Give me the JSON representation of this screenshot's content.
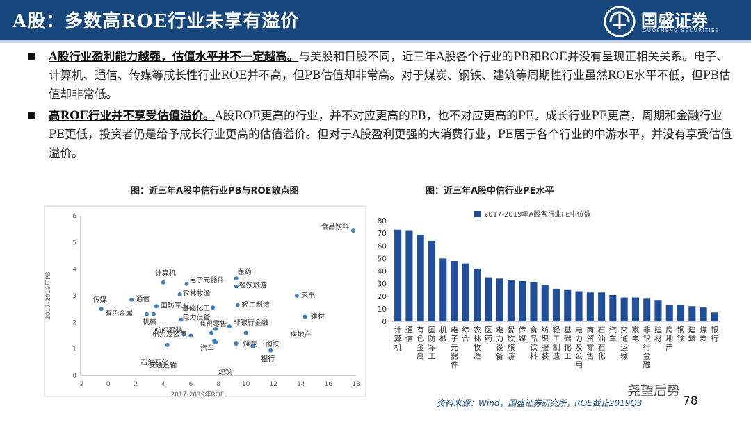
{
  "header": {
    "title": "A股：多数高ROE行业未享有溢价",
    "logo_name": "国盛证券",
    "logo_sub": "GUOSHENG SECURITIES"
  },
  "bullets": [
    {
      "highlight": "A股行业盈利能力越强，估值水平并不一定越高。",
      "text": "与美股和日股不同，近三年A股各个行业的PB和ROE并没有呈现正相关关系。电子、计算机、通信、传媒等成长性行业ROE并不高，但PB估值却非常高。对于煤炭、钢铁、建筑等周期性行业虽然ROE水平不低，但PB估值却非常低。"
    },
    {
      "highlight": "高ROE行业并不享受估值溢价。",
      "text": "A股ROE更高的行业，并不对应更高的PB，也不对应更高的PE。成长行业PE更高，周期和金融行业PE更低，投资者仍是给予成长行业更高的估值溢价。但对于A股盈利更强的大消费行业，PE居于各个行业的中游水平，并没有享受估值溢价。"
    }
  ],
  "left_caption": "图：近三年A股中信行业PB与ROE散点图",
  "right_caption": "图：近三年A股中信行业PE水平",
  "source": "资料来源：Wind，国盛证券研究所，ROE截止2019Q3",
  "page_number": "78",
  "watermark": "尧望后势",
  "colors": {
    "header": "#16477d",
    "scatter": "#3e7fc1",
    "bar": "#1f4e9a"
  },
  "chart_data": [
    {
      "type": "scatter",
      "title": "",
      "xlabel": "2017-2019年ROE",
      "ylabel": "2017-2019年PB",
      "xlim": [
        -2,
        18
      ],
      "ylim": [
        0,
        6
      ],
      "xticks": [
        -2,
        0,
        2,
        4,
        6,
        8,
        10,
        12,
        14,
        16,
        18
      ],
      "yticks": [
        0,
        1,
        2,
        3,
        4,
        5,
        6
      ],
      "grid": false,
      "points": [
        {
          "name": "食品饮料",
          "x": 17.8,
          "y": 5.45
        },
        {
          "name": "计算机",
          "x": 4.0,
          "y": 3.5
        },
        {
          "name": "医药",
          "x": 9.3,
          "y": 3.65
        },
        {
          "name": "电子元器件",
          "x": 5.7,
          "y": 3.45
        },
        {
          "name": "餐饮旅游",
          "x": 9.3,
          "y": 3.35
        },
        {
          "name": "农林牧渔",
          "x": 5.2,
          "y": 3.05
        },
        {
          "name": "家电",
          "x": 13.7,
          "y": 3.0
        },
        {
          "name": "传媒",
          "x": -0.5,
          "y": 2.5
        },
        {
          "name": "通信",
          "x": 1.7,
          "y": 2.85
        },
        {
          "name": "国防军工",
          "x": 3.5,
          "y": 2.6
        },
        {
          "name": "基础化工",
          "x": 7.6,
          "y": 2.55
        },
        {
          "name": "轻工制造",
          "x": 9.4,
          "y": 2.65
        },
        {
          "name": "建材",
          "x": 14.3,
          "y": 2.2
        },
        {
          "name": "有色金属",
          "x": 3.3,
          "y": 2.3
        },
        {
          "name": "机械",
          "x": 2.8,
          "y": 2.3
        },
        {
          "name": "电力设备",
          "x": 5.3,
          "y": 2.1
        },
        {
          "name": "非银行金融",
          "x": 8.8,
          "y": 1.85
        },
        {
          "name": "商贸零售",
          "x": 7.8,
          "y": 1.75
        },
        {
          "name": "纺织服装",
          "x": 5.5,
          "y": 1.55
        },
        {
          "name": "房地产",
          "x": 10.0,
          "y": 1.6
        },
        {
          "name": "电力及公用",
          "x": 4.3,
          "y": 1.15
        },
        {
          "name": "煤炭",
          "x": 9.3,
          "y": 1.2
        },
        {
          "name": "钢铁",
          "x": 10.5,
          "y": 1.1
        },
        {
          "name": "汽车",
          "x": 7.7,
          "y": 1.3
        },
        {
          "name": "石油石化",
          "x": 6.0,
          "y": 1.5
        },
        {
          "name": "交通运输",
          "x": 7.5,
          "y": 1.6
        },
        {
          "name": "建筑",
          "x": 7.8,
          "y": 1.25
        },
        {
          "name": "银行",
          "x": 11.8,
          "y": 0.95
        }
      ]
    },
    {
      "type": "bar",
      "title": "",
      "ylim": [
        0,
        80
      ],
      "yticks": [
        0,
        10,
        20,
        30,
        40,
        50,
        60,
        70,
        80
      ],
      "legend": "top",
      "categories": [
        "计算机",
        "通信",
        "有色金属",
        "国防军工",
        "机械",
        "电子元器件",
        "综合",
        "农林牧渔",
        "医药",
        "电力设备",
        "餐饮旅游",
        "传媒",
        "食品饮料",
        "纺织服装",
        "轻工制造",
        "基础化工",
        "电力及公用",
        "商贸零售",
        "石油石化",
        "汽车",
        "交通运输",
        "家电",
        "非银行金融",
        "建材",
        "房地产",
        "钢铁",
        "建筑",
        "煤炭",
        "银行"
      ],
      "series": [
        {
          "name": "2017-2019年A股各行业PE中位数",
          "values": [
            73,
            72,
            69,
            64,
            50,
            48,
            46,
            42,
            35,
            34,
            33,
            32,
            31,
            29,
            26,
            25,
            24,
            23,
            23,
            21,
            19,
            19,
            18,
            17,
            13,
            13,
            12,
            11,
            7
          ]
        }
      ]
    }
  ]
}
